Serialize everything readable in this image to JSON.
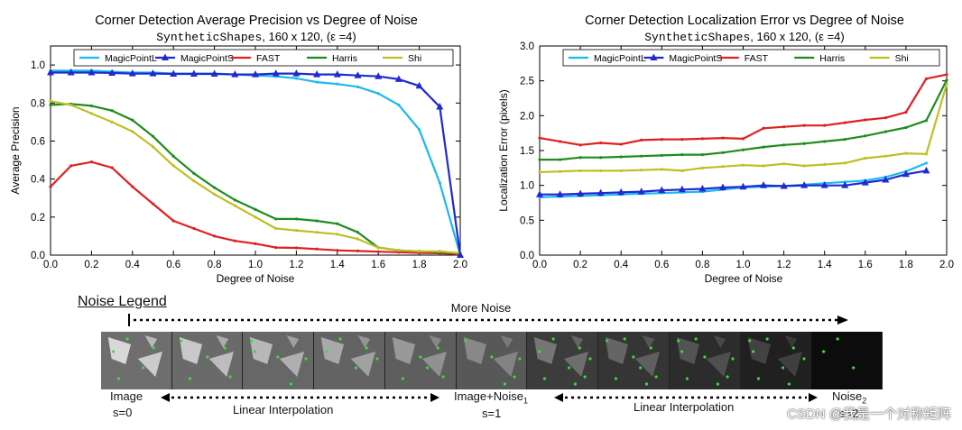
{
  "charts": {
    "left": {
      "title": "Corner Detection Average Precision vs Degree of Noise",
      "subtitle_mono": "SyntheticShapes",
      "subtitle_rest": ", 160 x 120, (ε =4)",
      "xlabel": "Degree of Noise",
      "ylabel": "Average Precision",
      "xticks": [
        "0.0",
        "0.2",
        "0.4",
        "0.6",
        "0.8",
        "1.0",
        "1.2",
        "1.4",
        "1.6",
        "1.8",
        "2.0"
      ],
      "yticks": [
        "0.0",
        "0.2",
        "0.4",
        "0.6",
        "0.8",
        "1.0"
      ]
    },
    "right": {
      "title": "Corner Detection Localization Error vs Degree of Noise",
      "subtitle_mono": "SyntheticShapes",
      "subtitle_rest": ", 160 x 120, (ε =4)",
      "xlabel": "Degree of Noise",
      "ylabel": "Localization Error (pixels)",
      "xticks": [
        "0.0",
        "0.2",
        "0.4",
        "0.6",
        "0.8",
        "1.0",
        "1.2",
        "1.4",
        "1.6",
        "1.8",
        "2.0"
      ],
      "yticks": [
        "0.0",
        "0.5",
        "1.0",
        "1.5",
        "2.0",
        "2.5",
        "3.0"
      ]
    }
  },
  "chart_data": [
    {
      "type": "line",
      "title": "Corner Detection Average Precision vs Degree of Noise",
      "subtitle": "SyntheticShapes, 160 x 120, (ε =4)",
      "xlabel": "Degree of Noise",
      "ylabel": "Average Precision",
      "xlim": [
        0,
        2.0
      ],
      "ylim": [
        0,
        1.1
      ],
      "legend_position": "top",
      "grid": false,
      "series": [
        {
          "name": "MagicPointL",
          "color": "#1ab9ee",
          "marker": "none",
          "x": [
            0,
            0.1,
            0.2,
            0.3,
            0.4,
            0.5,
            0.6,
            0.7,
            0.8,
            0.9,
            1.0,
            1.1,
            1.2,
            1.3,
            1.4,
            1.5,
            1.6,
            1.7,
            1.8,
            1.9,
            2.0
          ],
          "y": [
            0.97,
            0.97,
            0.97,
            0.965,
            0.96,
            0.96,
            0.955,
            0.955,
            0.955,
            0.95,
            0.945,
            0.94,
            0.93,
            0.91,
            0.9,
            0.885,
            0.85,
            0.79,
            0.66,
            0.38,
            0.0
          ]
        },
        {
          "name": "MagicPointS",
          "color": "#1f2ad0",
          "marker": "triangle",
          "x": [
            0,
            0.1,
            0.2,
            0.3,
            0.4,
            0.5,
            0.6,
            0.7,
            0.8,
            0.9,
            1.0,
            1.1,
            1.2,
            1.3,
            1.4,
            1.5,
            1.6,
            1.7,
            1.8,
            1.9,
            2.0
          ],
          "y": [
            0.96,
            0.96,
            0.96,
            0.958,
            0.955,
            0.955,
            0.953,
            0.953,
            0.953,
            0.95,
            0.95,
            0.955,
            0.955,
            0.95,
            0.95,
            0.945,
            0.94,
            0.925,
            0.89,
            0.78,
            0.0
          ]
        },
        {
          "name": "FAST",
          "color": "#e02020",
          "marker": "none",
          "x": [
            0,
            0.1,
            0.2,
            0.3,
            0.4,
            0.5,
            0.6,
            0.7,
            0.8,
            0.9,
            1.0,
            1.1,
            1.2,
            1.3,
            1.4,
            1.5,
            1.6,
            1.7,
            1.8,
            1.9,
            2.0
          ],
          "y": [
            0.36,
            0.47,
            0.49,
            0.46,
            0.36,
            0.27,
            0.18,
            0.14,
            0.1,
            0.075,
            0.06,
            0.04,
            0.038,
            0.032,
            0.025,
            0.022,
            0.018,
            0.015,
            0.012,
            0.01,
            0.005
          ]
        },
        {
          "name": "Harris",
          "color": "#1e8c1e",
          "marker": "none",
          "x": [
            0,
            0.1,
            0.2,
            0.3,
            0.4,
            0.5,
            0.6,
            0.7,
            0.8,
            0.9,
            1.0,
            1.1,
            1.2,
            1.3,
            1.4,
            1.5,
            1.6,
            1.7,
            1.8,
            1.9,
            2.0
          ],
          "y": [
            0.79,
            0.795,
            0.785,
            0.76,
            0.71,
            0.625,
            0.52,
            0.43,
            0.355,
            0.29,
            0.24,
            0.19,
            0.19,
            0.18,
            0.165,
            0.12,
            0.04,
            0.025,
            0.02,
            0.015,
            0.01
          ]
        },
        {
          "name": "Shi",
          "color": "#bfbf24",
          "marker": "none",
          "x": [
            0,
            0.1,
            0.2,
            0.3,
            0.4,
            0.5,
            0.6,
            0.7,
            0.8,
            0.9,
            1.0,
            1.1,
            1.2,
            1.3,
            1.4,
            1.5,
            1.6,
            1.7,
            1.8,
            1.9,
            2.0
          ],
          "y": [
            0.81,
            0.79,
            0.745,
            0.7,
            0.65,
            0.57,
            0.47,
            0.39,
            0.32,
            0.26,
            0.2,
            0.14,
            0.13,
            0.12,
            0.11,
            0.085,
            0.04,
            0.025,
            0.02,
            0.02,
            0.01
          ]
        }
      ]
    },
    {
      "type": "line",
      "title": "Corner Detection Localization Error vs Degree of Noise",
      "subtitle": "SyntheticShapes, 160 x 120, (ε =4)",
      "xlabel": "Degree of Noise",
      "ylabel": "Localization Error (pixels)",
      "xlim": [
        0,
        2.0
      ],
      "ylim": [
        0,
        3.0
      ],
      "legend_position": "top",
      "grid": false,
      "series": [
        {
          "name": "MagicPointL",
          "color": "#1ab9ee",
          "marker": "none",
          "x": [
            0,
            0.1,
            0.2,
            0.3,
            0.4,
            0.5,
            0.6,
            0.7,
            0.8,
            0.9,
            1.0,
            1.1,
            1.2,
            1.3,
            1.4,
            1.5,
            1.6,
            1.7,
            1.8,
            1.9
          ],
          "y": [
            0.83,
            0.84,
            0.85,
            0.86,
            0.87,
            0.88,
            0.89,
            0.9,
            0.91,
            0.94,
            0.97,
            0.98,
            0.99,
            1.01,
            1.03,
            1.05,
            1.07,
            1.12,
            1.2,
            1.32
          ]
        },
        {
          "name": "MagicPointS",
          "color": "#1f2ad0",
          "marker": "triangle",
          "x": [
            0,
            0.1,
            0.2,
            0.3,
            0.4,
            0.5,
            0.6,
            0.7,
            0.8,
            0.9,
            1.0,
            1.1,
            1.2,
            1.3,
            1.4,
            1.5,
            1.6,
            1.7,
            1.8,
            1.9
          ],
          "y": [
            0.87,
            0.87,
            0.88,
            0.89,
            0.9,
            0.91,
            0.93,
            0.94,
            0.95,
            0.97,
            0.98,
            1.0,
            0.99,
            1.0,
            1.0,
            1.0,
            1.04,
            1.08,
            1.16,
            1.21
          ]
        },
        {
          "name": "FAST",
          "color": "#e02020",
          "marker": "none",
          "x": [
            0,
            0.1,
            0.2,
            0.3,
            0.4,
            0.5,
            0.6,
            0.7,
            0.8,
            0.9,
            1.0,
            1.1,
            1.2,
            1.3,
            1.4,
            1.5,
            1.6,
            1.7,
            1.8,
            1.9,
            2.0
          ],
          "y": [
            1.68,
            1.63,
            1.58,
            1.61,
            1.59,
            1.65,
            1.66,
            1.66,
            1.67,
            1.68,
            1.67,
            1.82,
            1.84,
            1.86,
            1.86,
            1.9,
            1.94,
            1.97,
            2.05,
            2.53,
            2.59
          ]
        },
        {
          "name": "Harris",
          "color": "#1e8c1e",
          "marker": "none",
          "x": [
            0,
            0.1,
            0.2,
            0.3,
            0.4,
            0.5,
            0.6,
            0.7,
            0.8,
            0.9,
            1.0,
            1.1,
            1.2,
            1.3,
            1.4,
            1.5,
            1.6,
            1.7,
            1.8,
            1.9,
            2.0
          ],
          "y": [
            1.37,
            1.37,
            1.4,
            1.4,
            1.41,
            1.42,
            1.43,
            1.44,
            1.44,
            1.47,
            1.51,
            1.55,
            1.58,
            1.6,
            1.63,
            1.66,
            1.71,
            1.77,
            1.83,
            1.93,
            2.51
          ]
        },
        {
          "name": "Shi",
          "color": "#bfbf24",
          "marker": "none",
          "x": [
            0,
            0.1,
            0.2,
            0.3,
            0.4,
            0.5,
            0.6,
            0.7,
            0.8,
            0.9,
            1.0,
            1.1,
            1.2,
            1.3,
            1.4,
            1.5,
            1.6,
            1.7,
            1.8,
            1.9,
            2.0
          ],
          "y": [
            1.19,
            1.2,
            1.21,
            1.21,
            1.21,
            1.22,
            1.23,
            1.21,
            1.25,
            1.27,
            1.29,
            1.28,
            1.31,
            1.28,
            1.3,
            1.32,
            1.39,
            1.42,
            1.46,
            1.45,
            2.45
          ]
        }
      ]
    }
  ],
  "noise_legend": {
    "title": "Noise Legend",
    "more_noise": "More Noise",
    "labels": {
      "image": "Image",
      "s0": "s=0",
      "interp1": "Linear Interpolation",
      "image_noise": "Image+Noise",
      "noise_sub1": "1",
      "s1": "s=1",
      "interp2": "Linear Interpolation",
      "noise2": "Noise",
      "noise_sub2": "2",
      "s2": "s=2"
    },
    "tile_count": 11
  },
  "watermark": "CSDN @我是一个对称矩阵"
}
